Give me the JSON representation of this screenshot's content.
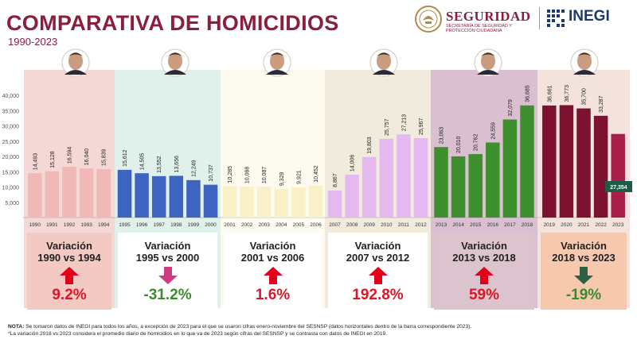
{
  "header": {
    "title": "COMPARATIVA DE HOMICIDIOS",
    "subtitle": "1990-2023",
    "logo_seguridad": "SEGURIDAD",
    "logo_seguridad_sub": "SECRETARÍA DE SEGURIDAD Y PROTECCIÓN CIUDADANA",
    "logo_inegi": "INEGI"
  },
  "chart_data": {
    "type": "bar",
    "title": "COMPARATIVA DE HOMICIDIOS",
    "subtitle": "1990-2023",
    "xlabel": "",
    "ylabel": "",
    "ylim": [
      0,
      40000
    ],
    "y_ticks": [
      "5,000",
      "10,000",
      "15,000",
      "20,000",
      "25,000",
      "30,000",
      "35,000",
      "40,000"
    ],
    "grid": false,
    "legend": "none",
    "periods": [
      {
        "label": "1990-1994",
        "color": "#f0b8b6",
        "bg": "#f3d8d6",
        "categories": [
          "1990",
          "1991",
          "1992",
          "1993",
          "1994"
        ],
        "values": [
          14493,
          15128,
          16594,
          16040,
          15839
        ],
        "labels": [
          "14,493",
          "15,128",
          "16,594",
          "16,040",
          "15,839"
        ]
      },
      {
        "label": "1995-2000",
        "color": "#3e63c0",
        "bg": "#e0f0ea",
        "categories": [
          "1995",
          "1996",
          "1997",
          "1998",
          "1999",
          "2000"
        ],
        "values": [
          15612,
          14505,
          13552,
          13656,
          12249,
          10737
        ],
        "labels": [
          "15,612",
          "14,505",
          "13,552",
          "13,656",
          "12,249",
          "10,737"
        ]
      },
      {
        "label": "2001-2006",
        "color": "#faf0c8",
        "bg": "#fdfaf0",
        "categories": [
          "2001",
          "2002",
          "2003",
          "2004",
          "2005",
          "2006"
        ],
        "values": [
          10285,
          10088,
          10087,
          9329,
          9921,
          10452
        ],
        "labels": [
          "10,285",
          "10,088",
          "10,087",
          "9,329",
          "9,921",
          "10,452"
        ]
      },
      {
        "label": "2007-2012",
        "color": "#e5b8ef",
        "bg": "#f1ebde",
        "categories": [
          "2007",
          "2008",
          "2009",
          "2010",
          "2011",
          "2012"
        ],
        "values": [
          8867,
          14006,
          19803,
          25757,
          27213,
          25967
        ],
        "labels": [
          "8,867",
          "14,006",
          "19,803",
          "25,757",
          "27,213",
          "25,967"
        ]
      },
      {
        "label": "2013-2018",
        "color": "#3e8f2d",
        "bg": "#d9bfcf",
        "categories": [
          "2013",
          "2014",
          "2015",
          "2016",
          "2017",
          "2018"
        ],
        "values": [
          23063,
          20010,
          20762,
          24559,
          32079,
          36685
        ],
        "labels": [
          "23,063",
          "20,010",
          "20,762",
          "24,559",
          "32,079",
          "36,685"
        ]
      },
      {
        "label": "2019-2023",
        "color": "#7d1230",
        "color_last": "#a8204a",
        "bg": "#f3e3dc",
        "categories": [
          "2019",
          "2020",
          "2021",
          "2022",
          "2023"
        ],
        "values": [
          36661,
          36773,
          35700,
          33287,
          27354
        ],
        "labels": [
          "36,661",
          "36,773",
          "35,700",
          "33,287",
          ""
        ]
      }
    ],
    "callout_2023": "27,354"
  },
  "variations": [
    {
      "title_line1": "Variación",
      "title_line2": "1990 vs 1994",
      "value": "9.2%",
      "direction": "up",
      "value_color": "#d7192b",
      "arrow_color": "#e2001a",
      "bg": "#f3c9c4"
    },
    {
      "title_line1": "Variación",
      "title_line2": "1995 vs 2000",
      "value": "-31.2%",
      "direction": "down",
      "value_color": "#3d8a2e",
      "arrow_color": "#cf3a83",
      "bg": "#ffffff"
    },
    {
      "title_line1": "Variación",
      "title_line2": "2001 vs 2006",
      "value": "1.6%",
      "direction": "up",
      "value_color": "#d7192b",
      "arrow_color": "#e2001a",
      "bg": "#ffffff"
    },
    {
      "title_line1": "Variación",
      "title_line2": "2007 vs 2012",
      "value": "192.8%",
      "direction": "up",
      "value_color": "#d7192b",
      "arrow_color": "#e2001a",
      "bg": "#ffffff"
    },
    {
      "title_line1": "Variación",
      "title_line2": "2013 vs 2018",
      "value": "59%",
      "direction": "up",
      "value_color": "#d7192b",
      "arrow_color": "#e2001a",
      "bg": "#dcc4cf"
    },
    {
      "title_line1": "Variación",
      "title_line2": "2018 vs 2023",
      "value": "-19%",
      "direction": "down",
      "value_color": "#3d8a2e",
      "arrow_color": "#2d6145",
      "bg": "#f6c8ad"
    }
  ],
  "notes": {
    "label": "NOTA:",
    "line1": " Se tomaron datos de INEGI para todos los años, a excepción de 2023 para el que se usaron cifras enero-noviembre del SESNSP (datos horizontales dentro de la barra correspondiente 2023).",
    "line2": "*La variación 2018 vs 2023 considera el promedio diario de homicidios en lo que va de 2023 según cifras del SESNSP y se contrasta con datos de INEGI en 2019."
  },
  "colors": {
    "brand": "#8a1e3c",
    "inegi": "#1d3a6e",
    "up": "#e2001a",
    "down_green": "#3d8a2e"
  }
}
